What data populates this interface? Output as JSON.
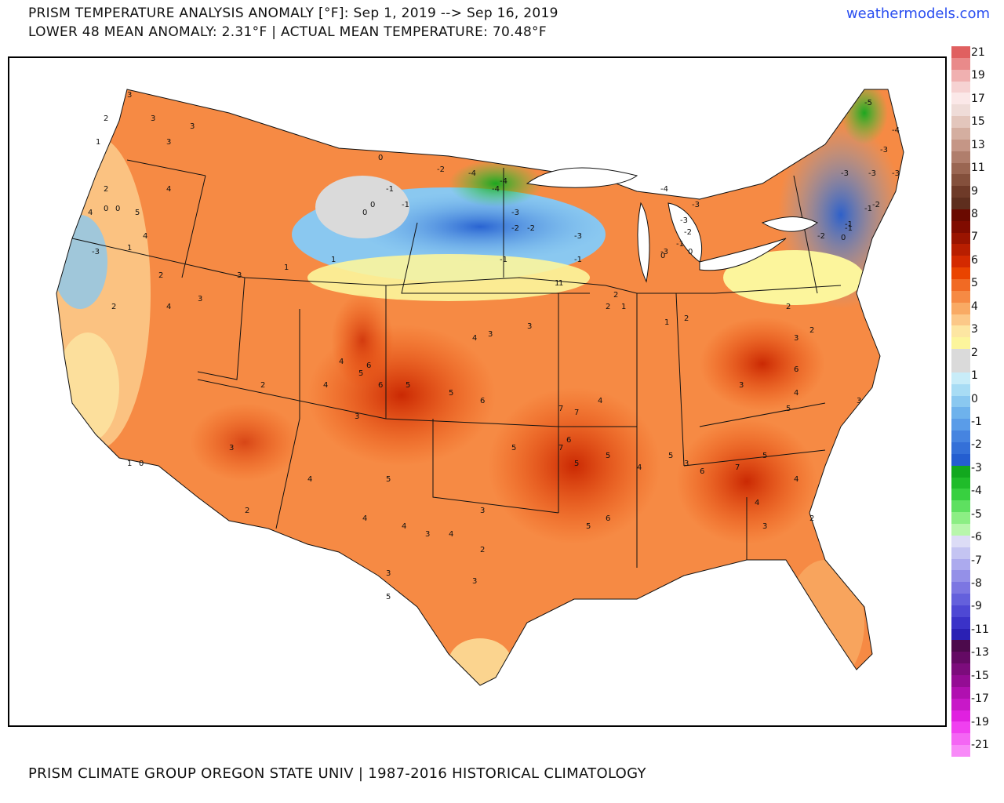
{
  "header": {
    "title_line1": "PRISM TEMPERATURE ANALYSIS ANOMALY [°F]: Sep 1, 2019 --> Sep 16, 2019",
    "title_line2": "LOWER 48 MEAN ANOMALY: 2.31°F | ACTUAL MEAN TEMPERATURE: 70.48°F",
    "brand": "weathermodels.com"
  },
  "footer": {
    "credit": "PRISM CLIMATE GROUP OREGON STATE UNIV | 1987-2016 HISTORICAL CLIMATOLOGY"
  },
  "legend": {
    "unit": "°F",
    "labels": [
      "21",
      "19",
      "17",
      "15",
      "13",
      "11",
      "9",
      "8",
      "7",
      "6",
      "5",
      "4",
      "3",
      "2",
      "1",
      "0",
      "-1",
      "-2",
      "-3",
      "-4",
      "-5",
      "-6",
      "-7",
      "-8",
      "-9",
      "-11",
      "-13",
      "-15",
      "-17",
      "-19",
      "-21"
    ],
    "colors": [
      "#e06060",
      "#e98a8a",
      "#f0b0b0",
      "#f6d2d2",
      "#fbe8e8",
      "#efdcd8",
      "#e3c6bc",
      "#d4aea0",
      "#c59686",
      "#b07e6c",
      "#9a6652",
      "#84503c",
      "#6e3a28",
      "#5e2e1e",
      "#6a0a00",
      "#800c00",
      "#9a1400",
      "#b81e00",
      "#d42a00",
      "#ea4400",
      "#f16a24",
      "#f68a44",
      "#f9aa64",
      "#fcc888",
      "#fde6a2",
      "#fcf59c",
      "#dadada",
      "#dadada",
      "#c8ecf8",
      "#a8dcf4",
      "#8ac8f0",
      "#6eb2ec",
      "#5a9ce8",
      "#4684e0",
      "#3470d8",
      "#245ed0",
      "#12a81e",
      "#20bc2a",
      "#38d040",
      "#5ee060",
      "#8cee84",
      "#b8f6ac",
      "#dcdcf6",
      "#c4c4f2",
      "#acaaee",
      "#9490e8",
      "#7c76e2",
      "#6460dc",
      "#4e48d4",
      "#3a32c8",
      "#2a20b4",
      "#4c0a4c",
      "#640a64",
      "#7c0c7c",
      "#940c94",
      "#b010b0",
      "#c818c8",
      "#e020e0",
      "#f040f0",
      "#f466f4",
      "#f88af8"
    ]
  },
  "map": {
    "region": "Lower 48 United States",
    "anomaly_labels": [
      {
        "v": "3"
      },
      {
        "v": "2"
      },
      {
        "v": "1"
      },
      {
        "v": "3"
      },
      {
        "v": "3"
      },
      {
        "v": "3"
      },
      {
        "v": "4"
      },
      {
        "v": "5"
      },
      {
        "v": "2"
      },
      {
        "v": "4"
      },
      {
        "v": "4"
      },
      {
        "v": "0"
      },
      {
        "v": "0"
      },
      {
        "v": "1"
      },
      {
        "v": "2"
      },
      {
        "v": "-3"
      },
      {
        "v": "2"
      },
      {
        "v": "1"
      },
      {
        "v": "0"
      },
      {
        "v": "4"
      },
      {
        "v": "3"
      },
      {
        "v": "3"
      },
      {
        "v": "1"
      },
      {
        "v": "1"
      },
      {
        "v": "0"
      },
      {
        "v": "0"
      },
      {
        "v": "-1"
      },
      {
        "v": "-1"
      },
      {
        "v": "0"
      },
      {
        "v": "-2"
      },
      {
        "v": "-4"
      },
      {
        "v": "-4"
      },
      {
        "v": "-2"
      },
      {
        "v": "-3"
      },
      {
        "v": "-4"
      },
      {
        "v": "-1"
      },
      {
        "v": "-2"
      },
      {
        "v": "-3"
      },
      {
        "v": "-1"
      },
      {
        "v": "-4"
      },
      {
        "v": "-3"
      },
      {
        "v": "-3"
      },
      {
        "v": "-2"
      },
      {
        "v": "-3"
      },
      {
        "v": "-1"
      },
      {
        "v": "0"
      },
      {
        "v": "0"
      },
      {
        "v": "-1"
      },
      {
        "v": "-5"
      },
      {
        "v": "-4"
      },
      {
        "v": "-3"
      },
      {
        "v": "-3"
      },
      {
        "v": "-3"
      },
      {
        "v": "-1"
      },
      {
        "v": "-2"
      },
      {
        "v": "-3"
      },
      {
        "v": "-1"
      },
      {
        "v": "0"
      },
      {
        "v": "-2"
      },
      {
        "v": "1"
      },
      {
        "v": "1"
      },
      {
        "v": "2"
      },
      {
        "v": "1"
      },
      {
        "v": "2"
      },
      {
        "v": "3"
      },
      {
        "v": "4"
      },
      {
        "v": "5"
      },
      {
        "v": "6"
      },
      {
        "v": "7"
      },
      {
        "v": "6"
      },
      {
        "v": "5"
      },
      {
        "v": "6"
      },
      {
        "v": "6"
      },
      {
        "v": "5"
      },
      {
        "v": "4"
      },
      {
        "v": "5"
      },
      {
        "v": "3"
      },
      {
        "v": "4"
      },
      {
        "v": "5"
      },
      {
        "v": "7"
      },
      {
        "v": "7"
      },
      {
        "v": "5"
      },
      {
        "v": "6"
      },
      {
        "v": "5"
      },
      {
        "v": "4"
      },
      {
        "v": "3"
      },
      {
        "v": "5"
      },
      {
        "v": "6"
      },
      {
        "v": "7"
      },
      {
        "v": "5"
      },
      {
        "v": "4"
      },
      {
        "v": "3"
      },
      {
        "v": "2"
      },
      {
        "v": "3"
      },
      {
        "v": "4"
      },
      {
        "v": "5"
      },
      {
        "v": "6"
      },
      {
        "v": "4"
      },
      {
        "v": "3"
      },
      {
        "v": "3"
      },
      {
        "v": "2"
      },
      {
        "v": "2"
      },
      {
        "v": "1"
      },
      {
        "v": "2"
      },
      {
        "v": "3"
      },
      {
        "v": "4"
      },
      {
        "v": "4"
      },
      {
        "v": "5"
      },
      {
        "v": "3"
      },
      {
        "v": "2"
      },
      {
        "v": "3"
      },
      {
        "v": "4"
      },
      {
        "v": "3"
      },
      {
        "v": "4"
      },
      {
        "v": "2"
      },
      {
        "v": "3"
      },
      {
        "v": "5"
      },
      {
        "v": "4"
      },
      {
        "v": "3"
      },
      {
        "v": "2"
      }
    ]
  }
}
